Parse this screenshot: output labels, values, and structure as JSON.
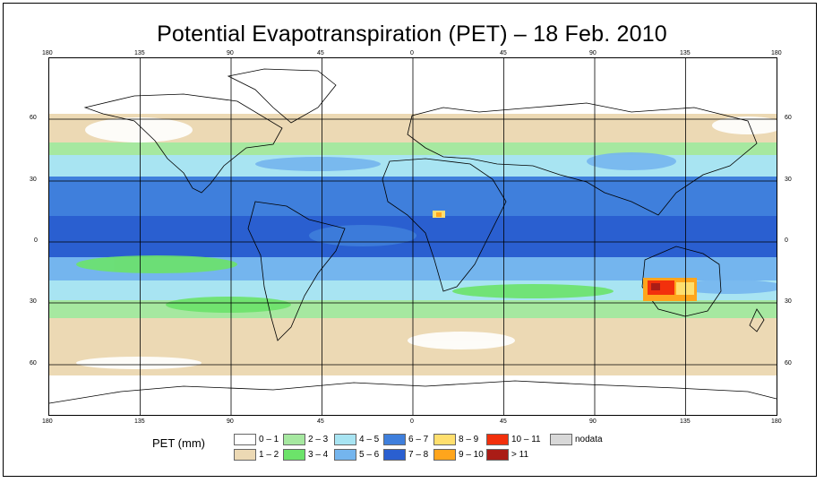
{
  "title": "Potential Evapotranspiration (PET) – 18 Feb. 2010",
  "lon_ticks": [
    "180",
    "135",
    "90",
    "45",
    "0",
    "45",
    "90",
    "135",
    "180"
  ],
  "lat_ticks": [
    "60",
    "30",
    "0",
    "30",
    "60"
  ],
  "legend": {
    "title": "PET (mm)",
    "items": [
      {
        "label": "0 – 1",
        "color": "#ffffff"
      },
      {
        "label": "1 – 2",
        "color": "#ecd9b4"
      },
      {
        "label": "2 – 3",
        "color": "#a6e8a0"
      },
      {
        "label": "3 – 4",
        "color": "#6ce36a"
      },
      {
        "label": "4 – 5",
        "color": "#a8e4f2"
      },
      {
        "label": "5 – 6",
        "color": "#74b5ee"
      },
      {
        "label": "6 – 7",
        "color": "#3f7fdc"
      },
      {
        "label": "7 – 8",
        "color": "#2a5fd0"
      },
      {
        "label": "8 – 9",
        "color": "#ffdf6e"
      },
      {
        "label": "9 – 10",
        "color": "#ffa51c"
      },
      {
        "label": "10 – 11",
        "color": "#f2300c"
      },
      {
        "label": "> 11",
        "color": "#aa1c16"
      },
      {
        "label": "nodata",
        "color": "#d8d8d8"
      }
    ]
  }
}
